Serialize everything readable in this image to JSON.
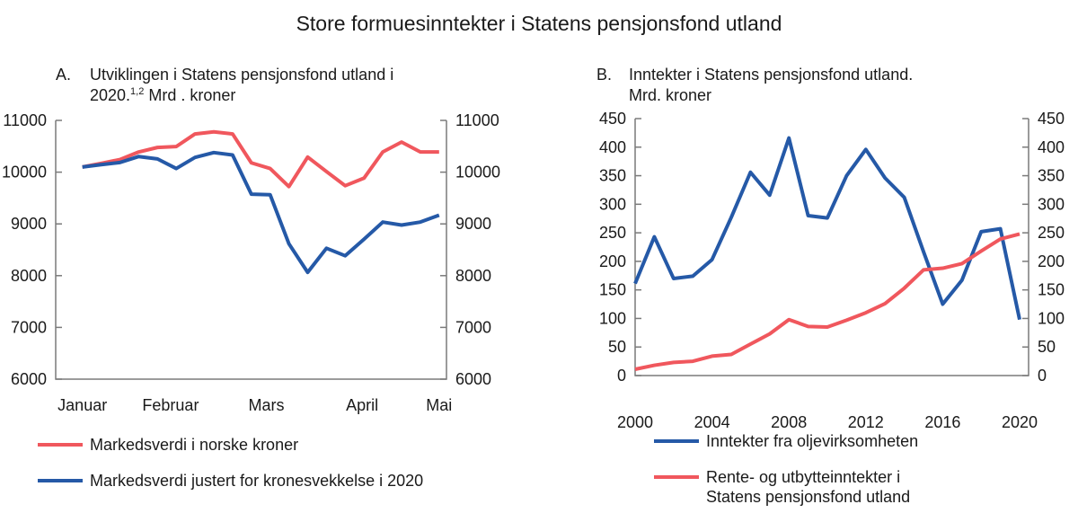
{
  "title": "Store formuesinntekter i Statens pensjonsfond utland",
  "colors": {
    "red": "#f0575d",
    "blue": "#2559a7",
    "axis": "#7a7a7a"
  },
  "chart_data": [
    {
      "type": "line",
      "panel": "A.",
      "title_line1": "Utviklingen i Statens pensjonsfond utland i",
      "title_line2": "2020.",
      "title_sup": "1,2",
      "title_line2_rest": " Mrd . kroner",
      "x_ticks": [
        {
          "label": "Januar",
          "at": 0
        },
        {
          "label": "Februar",
          "at": 4.7
        },
        {
          "label": "Mars",
          "at": 9.8
        },
        {
          "label": "April",
          "at": 14.9
        },
        {
          "label": "Mai",
          "at": 19
        }
      ],
      "ylim": [
        6000,
        11000
      ],
      "yticks": [
        6000,
        7000,
        8000,
        9000,
        10000,
        11000
      ],
      "legend_placement": "bottom",
      "series": [
        {
          "name": "Markedsverdi i norske kroner",
          "color": "#f0575d",
          "values": [
            10099,
            10169,
            10244,
            10390,
            10477,
            10494,
            10738,
            10779,
            10738,
            10180,
            10070,
            9721,
            10291,
            10012,
            9738,
            9884,
            10390,
            10581,
            10390,
            10390
          ]
        },
        {
          "name": "Markedsverdi justert for kronesvekkelse i 2020",
          "color": "#2559a7",
          "values": [
            10099,
            10145,
            10186,
            10302,
            10256,
            10070,
            10285,
            10378,
            10331,
            9575,
            9564,
            8616,
            8064,
            8529,
            8384,
            8703,
            9035,
            8977,
            9035,
            9169
          ]
        }
      ]
    },
    {
      "type": "line",
      "panel": "B.",
      "title_line1": "Inntekter i Statens pensjonsfond utland.",
      "title_line2": "Mrd. kroner",
      "x": [
        2000,
        2001,
        2002,
        2003,
        2004,
        2005,
        2006,
        2007,
        2008,
        2009,
        2010,
        2011,
        2012,
        2013,
        2014,
        2015,
        2016,
        2017,
        2018,
        2019,
        2020
      ],
      "xticks": [
        2000,
        2004,
        2008,
        2012,
        2016,
        2020
      ],
      "xlim": [
        2000,
        2020
      ],
      "ylim": [
        0,
        450
      ],
      "yticks": [
        0,
        50,
        100,
        150,
        200,
        250,
        300,
        350,
        400,
        450
      ],
      "legend_placement": "bottom",
      "series": [
        {
          "name": "Inntekter fra oljevirksomheten",
          "color": "#2559a7",
          "values": [
            161,
            243,
            170,
            174,
            203,
            277,
            356,
            316,
            416,
            280,
            276,
            350,
            396,
            346,
            312,
            217,
            125,
            167,
            252,
            257,
            98
          ]
        },
        {
          "name_line1": "Rente- og utbytteinntekter i",
          "name_line2": "Statens pensjonsfond utland",
          "color": "#f0575d",
          "values": [
            11,
            18,
            23,
            25,
            34,
            37,
            55,
            73,
            98,
            86,
            85,
            97,
            110,
            126,
            153,
            185,
            188,
            196,
            218,
            239,
            248
          ]
        }
      ]
    }
  ]
}
